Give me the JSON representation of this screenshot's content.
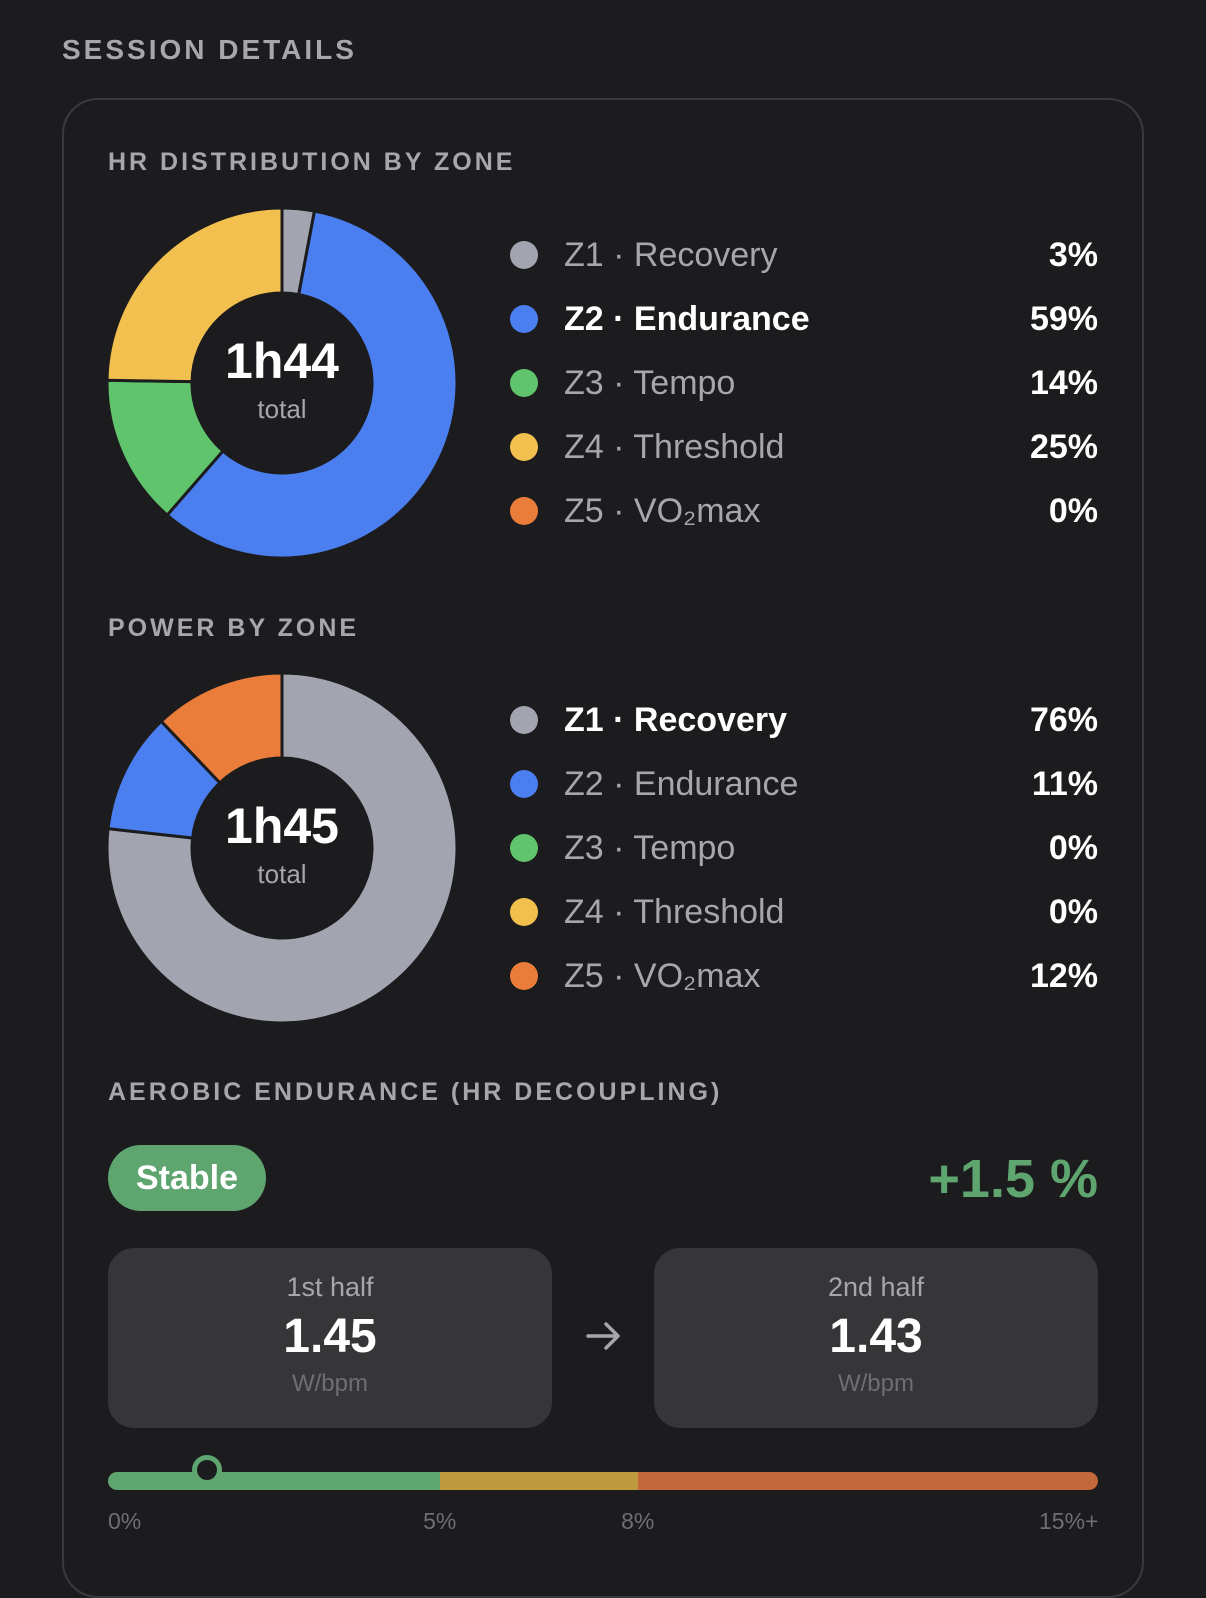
{
  "header": {
    "title": "SESSION DETAILS"
  },
  "hr_distribution": {
    "title": "HR DISTRIBUTION BY ZONE",
    "total": "1h44",
    "total_label": "total",
    "zones": [
      {
        "label": "Z1 · Recovery",
        "value": "3%",
        "pct": 3,
        "color": "#a2a5b0",
        "active": false
      },
      {
        "label": "Z2 · Endurance",
        "value": "59%",
        "pct": 59,
        "color": "#4b7ff0",
        "active": true
      },
      {
        "label": "Z3 · Tempo",
        "value": "14%",
        "pct": 14,
        "color": "#5fc46c",
        "active": false
      },
      {
        "label": "Z4 · Threshold",
        "value": "25%",
        "pct": 25,
        "color": "#f2c04e",
        "active": false
      },
      {
        "label": "Z5 · VO₂max",
        "value": "0%",
        "pct": 0,
        "color": "#ea7d3a",
        "active": false
      }
    ]
  },
  "power_distribution": {
    "title": "POWER BY ZONE",
    "total": "1h45",
    "total_label": "total",
    "zones": [
      {
        "label": "Z1 · Recovery",
        "value": "76%",
        "pct": 76,
        "color": "#a2a5b0",
        "active": true
      },
      {
        "label": "Z2 · Endurance",
        "value": "11%",
        "pct": 11,
        "color": "#4b7ff0",
        "active": false
      },
      {
        "label": "Z3 · Tempo",
        "value": "0%",
        "pct": 0,
        "color": "#5fc46c",
        "active": false
      },
      {
        "label": "Z4 · Threshold",
        "value": "0%",
        "pct": 0,
        "color": "#f2c04e",
        "active": false
      },
      {
        "label": "Z5 · VO₂max",
        "value": "12%",
        "pct": 12,
        "color": "#ea7d3a",
        "active": false
      }
    ]
  },
  "aerobic": {
    "title": "AEROBIC ENDURANCE (HR DECOUPLING)",
    "status": "Stable",
    "status_color": "#5fa570",
    "decoupling": "+1.5 %",
    "decoupling_pct": 1.5,
    "first_half": {
      "label": "1st half",
      "value": "1.45",
      "unit": "W/bpm"
    },
    "second_half": {
      "label": "2nd half",
      "value": "1.43",
      "unit": "W/bpm"
    },
    "arrow_icon": "arrow-right-icon",
    "scale": {
      "ticks": [
        "0%",
        "5%",
        "8%",
        "15%+"
      ],
      "tick_values": [
        0,
        5,
        8,
        15
      ],
      "segments": [
        {
          "from": 0,
          "to": 5,
          "color": "#5fa570"
        },
        {
          "from": 5,
          "to": 8,
          "color": "#c29a3e"
        },
        {
          "from": 8,
          "to": 15,
          "color": "#c2683a"
        }
      ]
    }
  }
}
